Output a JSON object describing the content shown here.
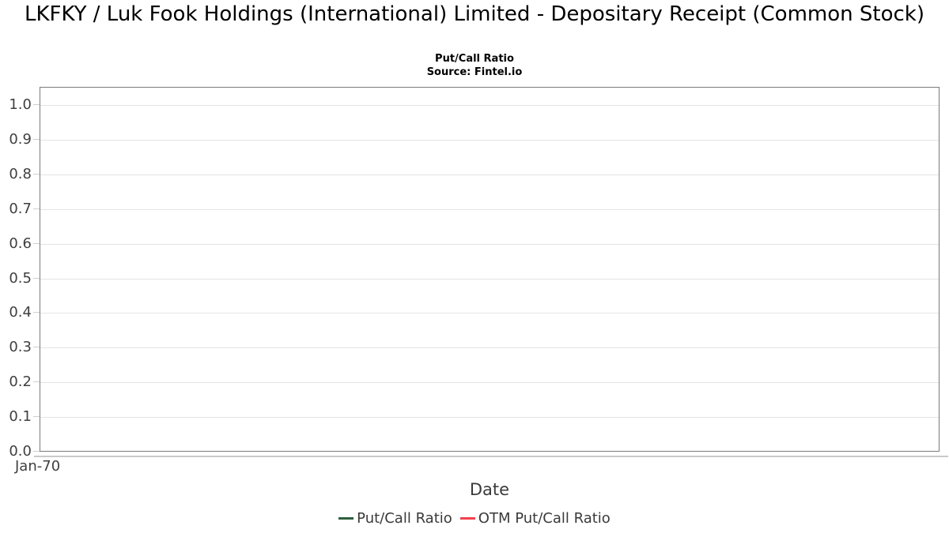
{
  "chart_data": {
    "type": "line",
    "title": "LKFKY / Luk Fook Holdings (International) Limited - Depositary Receipt (Common Stock)",
    "subtitle": "Put/Call Ratio",
    "source": "Source: Fintel.io",
    "xlabel": "Date",
    "ylabel": "",
    "ylim": [
      0.0,
      1.05
    ],
    "ytick_labels": [
      "0.0",
      "0.1",
      "0.2",
      "0.3",
      "0.4",
      "0.5",
      "0.6",
      "0.7",
      "0.8",
      "0.9",
      "1.0"
    ],
    "ytick_values": [
      0.0,
      0.1,
      0.2,
      0.3,
      0.4,
      0.5,
      0.6,
      0.7,
      0.8,
      0.9,
      1.0
    ],
    "xticks": [
      "Jan-70"
    ],
    "grid": true,
    "legend_position": "bottom",
    "series": [
      {
        "name": "Put/Call Ratio",
        "color": "#2d5f3e",
        "x": [],
        "values": []
      },
      {
        "name": "OTM Put/Call Ratio",
        "color": "#f2404d",
        "x": [],
        "values": []
      }
    ]
  },
  "colors": {
    "grid": "#e4e4e4",
    "plot_border": "#7a7a7a",
    "axis_line": "#c9c9c9",
    "tick": "#cfcfcf",
    "axis_text": "#3f3f3f",
    "title_text": "#000000",
    "series_green": "#2d5f3e",
    "series_red": "#f2404d"
  }
}
